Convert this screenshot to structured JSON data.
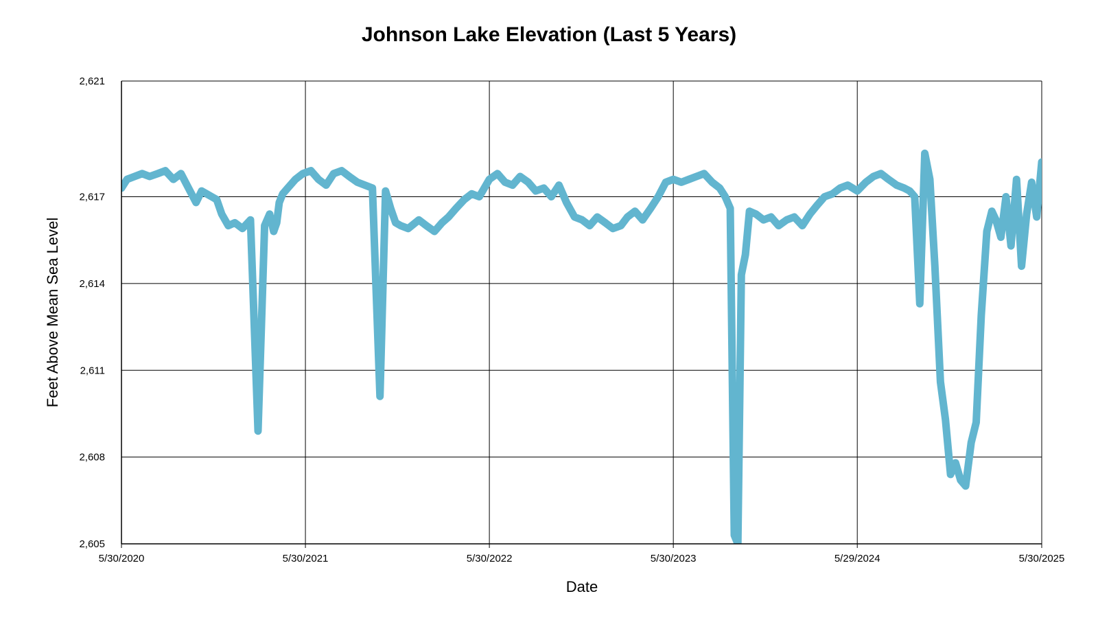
{
  "chart_data": {
    "type": "line",
    "title": "Johnson Lake Elevation (Last 5 Years)",
    "xlabel": "Date",
    "ylabel": "Feet Above Mean Sea Level",
    "ylim": [
      2605,
      2621
    ],
    "y_ticks": [
      2605,
      2608,
      2611,
      2614,
      2617,
      2621
    ],
    "y_tick_labels": [
      "2,605",
      "2,608",
      "2,611",
      "2,614",
      "2,617",
      "2,621"
    ],
    "x_ticks": [
      "2020-05-30",
      "2021-05-30",
      "2022-05-30",
      "2023-05-30",
      "2024-05-29",
      "2025-05-30"
    ],
    "x_tick_labels": [
      "5/30/2020",
      "5/30/2021",
      "5/30/2022",
      "5/30/2023",
      "5/29/2024",
      "5/30/2025"
    ],
    "xlim": [
      "2020-05-30",
      "2025-05-30"
    ],
    "grid": true,
    "line_color": "#62b5cf",
    "series": [
      {
        "x": [
          "2020-05-30",
          "2020-06-10",
          "2020-06-25",
          "2020-07-10",
          "2020-07-25",
          "2020-08-10",
          "2020-08-25",
          "2020-09-10",
          "2020-09-25",
          "2020-10-10",
          "2020-10-25",
          "2020-11-05",
          "2020-11-15",
          "2020-11-25",
          "2020-12-05",
          "2020-12-15",
          "2020-12-28",
          "2021-01-10",
          "2021-01-25",
          "2021-02-10",
          "2021-02-25",
          "2021-03-10",
          "2021-03-20",
          "2021-03-28",
          "2021-04-03",
          "2021-04-08",
          "2021-04-15",
          "2021-04-25",
          "2021-05-10",
          "2021-05-25",
          "2021-06-10",
          "2021-06-25",
          "2021-07-10",
          "2021-07-25",
          "2021-08-10",
          "2021-08-25",
          "2021-09-10",
          "2021-09-25",
          "2021-10-10",
          "2021-10-25",
          "2021-11-05",
          "2021-11-15",
          "2021-11-25",
          "2021-12-05",
          "2021-12-20",
          "2022-01-10",
          "2022-01-25",
          "2022-02-10",
          "2022-02-25",
          "2022-03-10",
          "2022-03-25",
          "2022-04-10",
          "2022-04-25",
          "2022-05-10",
          "2022-05-30",
          "2022-06-15",
          "2022-06-30",
          "2022-07-15",
          "2022-07-30",
          "2022-08-15",
          "2022-08-30",
          "2022-09-15",
          "2022-09-30",
          "2022-10-15",
          "2022-10-30",
          "2022-11-15",
          "2022-11-30",
          "2022-12-15",
          "2022-12-30",
          "2023-01-15",
          "2023-01-30",
          "2023-02-15",
          "2023-02-28",
          "2023-03-15",
          "2023-03-30",
          "2023-04-15",
          "2023-04-30",
          "2023-05-15",
          "2023-05-30",
          "2023-06-15",
          "2023-06-30",
          "2023-07-15",
          "2023-07-30",
          "2023-08-15",
          "2023-08-30",
          "2023-09-10",
          "2023-09-20",
          "2023-09-28",
          "2023-10-05",
          "2023-10-12",
          "2023-10-20",
          "2023-10-28",
          "2023-11-10",
          "2023-11-25",
          "2023-12-10",
          "2023-12-25",
          "2024-01-10",
          "2024-01-25",
          "2024-02-10",
          "2024-02-25",
          "2024-03-10",
          "2024-03-25",
          "2024-04-10",
          "2024-04-25",
          "2024-05-10",
          "2024-05-29",
          "2024-06-15",
          "2024-06-30",
          "2024-07-15",
          "2024-07-30",
          "2024-08-15",
          "2024-08-30",
          "2024-09-10",
          "2024-09-20",
          "2024-09-30",
          "2024-10-10",
          "2024-10-20",
          "2024-10-30",
          "2024-11-10",
          "2024-11-20",
          "2024-11-30",
          "2024-12-10",
          "2024-12-20",
          "2024-12-30",
          "2025-01-10",
          "2025-01-20",
          "2025-01-30",
          "2025-02-10",
          "2025-02-20",
          "2025-02-28",
          "2025-03-10",
          "2025-03-20",
          "2025-03-30",
          "2025-04-10",
          "2025-04-20",
          "2025-04-30",
          "2025-05-10",
          "2025-05-20",
          "2025-05-30"
        ],
        "y": [
          2617.3,
          2617.6,
          2617.7,
          2617.8,
          2617.7,
          2617.8,
          2617.9,
          2617.6,
          2617.8,
          2617.3,
          2616.8,
          2617.2,
          2617.1,
          2617.0,
          2616.9,
          2616.4,
          2616.0,
          2616.1,
          2615.9,
          2616.2,
          2608.9,
          2616.0,
          2616.4,
          2615.8,
          2616.1,
          2616.8,
          2617.1,
          2617.3,
          2617.6,
          2617.8,
          2617.9,
          2617.6,
          2617.4,
          2617.8,
          2617.9,
          2617.7,
          2617.5,
          2617.4,
          2617.3,
          2610.1,
          2617.2,
          2616.6,
          2616.1,
          2616.0,
          2615.9,
          2616.2,
          2616.0,
          2615.8,
          2616.1,
          2616.3,
          2616.6,
          2616.9,
          2617.1,
          2617.0,
          2617.6,
          2617.8,
          2617.5,
          2617.4,
          2617.7,
          2617.5,
          2617.2,
          2617.3,
          2617.0,
          2617.4,
          2616.8,
          2616.3,
          2616.2,
          2616.0,
          2616.3,
          2616.1,
          2615.9,
          2616.0,
          2616.3,
          2616.5,
          2616.2,
          2616.6,
          2617.0,
          2617.5,
          2617.6,
          2617.5,
          2617.6,
          2617.7,
          2617.8,
          2617.5,
          2617.3,
          2617.0,
          2616.6,
          2605.3,
          2605.0,
          2614.3,
          2615.0,
          2616.5,
          2616.4,
          2616.2,
          2616.3,
          2616.0,
          2616.2,
          2616.3,
          2616.0,
          2616.4,
          2616.7,
          2617.0,
          2617.1,
          2617.3,
          2617.4,
          2617.2,
          2617.5,
          2617.7,
          2617.8,
          2617.6,
          2617.4,
          2617.3,
          2617.2,
          2617.0,
          2613.3,
          2618.5,
          2617.6,
          2614.6,
          2610.6,
          2609.3,
          2607.4,
          2607.8,
          2607.2,
          2607.0,
          2608.5,
          2609.2,
          2612.9,
          2615.8,
          2616.5,
          2616.2,
          2615.6,
          2617.0,
          2615.3,
          2617.6,
          2614.6,
          2616.4,
          2617.5,
          2616.3,
          2618.2
        ]
      }
    ]
  }
}
